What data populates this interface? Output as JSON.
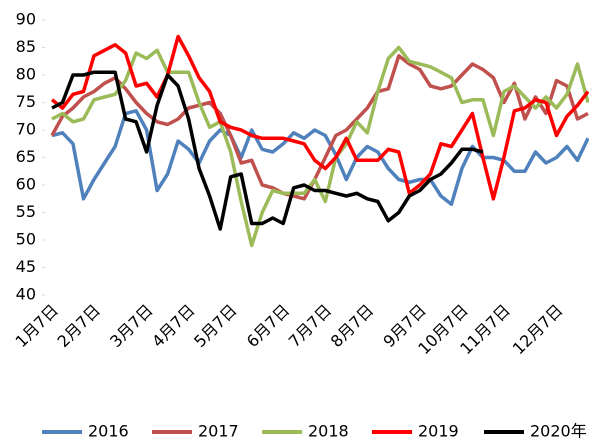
{
  "chart_data": {
    "type": "line",
    "categories": [
      "1月7日",
      null,
      null,
      null,
      "2月7日",
      null,
      null,
      null,
      null,
      "3月7日",
      null,
      null,
      null,
      "4月7日",
      null,
      null,
      null,
      "5月7日",
      null,
      null,
      null,
      null,
      "6月7日",
      null,
      null,
      null,
      "7月7日",
      null,
      null,
      null,
      "8月7日",
      null,
      null,
      null,
      null,
      "9月7日",
      null,
      null,
      null,
      "10月7日",
      null,
      null,
      null,
      "11月7日",
      null,
      null,
      null,
      null,
      "12月7日",
      null,
      null,
      null
    ],
    "ylim": [
      40,
      90
    ],
    "yticks": [
      40,
      45,
      50,
      55,
      60,
      65,
      70,
      75,
      80,
      85,
      90
    ],
    "grid": false,
    "legend": "bottom",
    "series": [
      {
        "name": "2016",
        "color": "#4f81bd",
        "values": [
          69,
          69.5,
          67.5,
          57.5,
          61,
          64,
          67,
          73,
          73.5,
          70,
          59,
          62,
          68,
          66.5,
          64,
          68,
          70,
          69,
          65,
          70,
          66.5,
          66,
          67.5,
          69.5,
          68.5,
          70,
          69,
          65.5,
          61,
          65,
          67,
          66,
          63,
          61,
          60.5,
          61,
          61,
          58,
          56.5,
          63,
          67,
          65,
          65,
          64.5,
          62.5,
          62.5,
          66,
          64,
          65,
          67,
          64.5,
          68.5
        ]
      },
      {
        "name": "2017",
        "color": "#c0504d",
        "values": [
          69,
          72.5,
          74,
          76,
          77,
          78.5,
          79.5,
          77.5,
          75,
          73,
          71.5,
          71,
          72,
          74,
          74.5,
          75,
          73,
          69,
          64,
          64.5,
          60,
          59.5,
          58.5,
          58,
          57.5,
          61,
          65,
          69,
          70,
          72,
          74,
          77,
          77.5,
          83.5,
          82,
          81,
          78,
          77.5,
          78,
          80,
          82,
          81,
          79.5,
          75,
          78.5,
          72,
          76,
          73,
          79,
          78,
          72,
          73
        ]
      },
      {
        "name": "2018",
        "color": "#9bbb59",
        "values": [
          72,
          73,
          71.5,
          72,
          75.5,
          76,
          76.5,
          79,
          84,
          83,
          84.5,
          80.5,
          80.5,
          80.5,
          75,
          70.5,
          71.5,
          66,
          57,
          49,
          55,
          59,
          58.5,
          58.5,
          58.5,
          61,
          57,
          65,
          67.5,
          71.5,
          69.5,
          77,
          83,
          85,
          82.5,
          82,
          81.5,
          80.5,
          79.5,
          75,
          75.5,
          75.5,
          69,
          77,
          78,
          76,
          74,
          76,
          74,
          76.5,
          82,
          75
        ]
      },
      {
        "name": "2019",
        "color": "#ff0000",
        "values": [
          75.5,
          74,
          76.5,
          77,
          83.5,
          84.5,
          85.5,
          84,
          78,
          78.5,
          76,
          80,
          87,
          83.5,
          79.5,
          77,
          71.5,
          70.5,
          70,
          69,
          68.5,
          68.5,
          68.5,
          68,
          67.5,
          64.5,
          63,
          65,
          68.5,
          64.5,
          64.5,
          64.5,
          66.5,
          66,
          58.5,
          60,
          62,
          67.5,
          67,
          70,
          73,
          65,
          57.5,
          65,
          73.5,
          74,
          75.5,
          75,
          69,
          72.5,
          74.5,
          77
        ]
      },
      {
        "name": "2020年",
        "color": "#000000",
        "values": [
          74,
          75,
          80,
          80,
          80.5,
          80.5,
          80.5,
          72,
          71.5,
          66,
          74.5,
          80,
          78,
          72,
          63,
          58,
          52,
          61.5,
          62,
          53,
          53,
          54,
          53,
          59.5,
          60,
          59,
          59,
          58.5,
          58,
          58.5,
          57.5,
          57,
          53.5,
          55,
          58,
          59,
          61,
          62,
          64,
          66.5,
          66.5,
          66,
          null,
          null,
          null,
          null,
          null,
          null,
          null,
          null,
          null,
          null
        ]
      }
    ]
  }
}
